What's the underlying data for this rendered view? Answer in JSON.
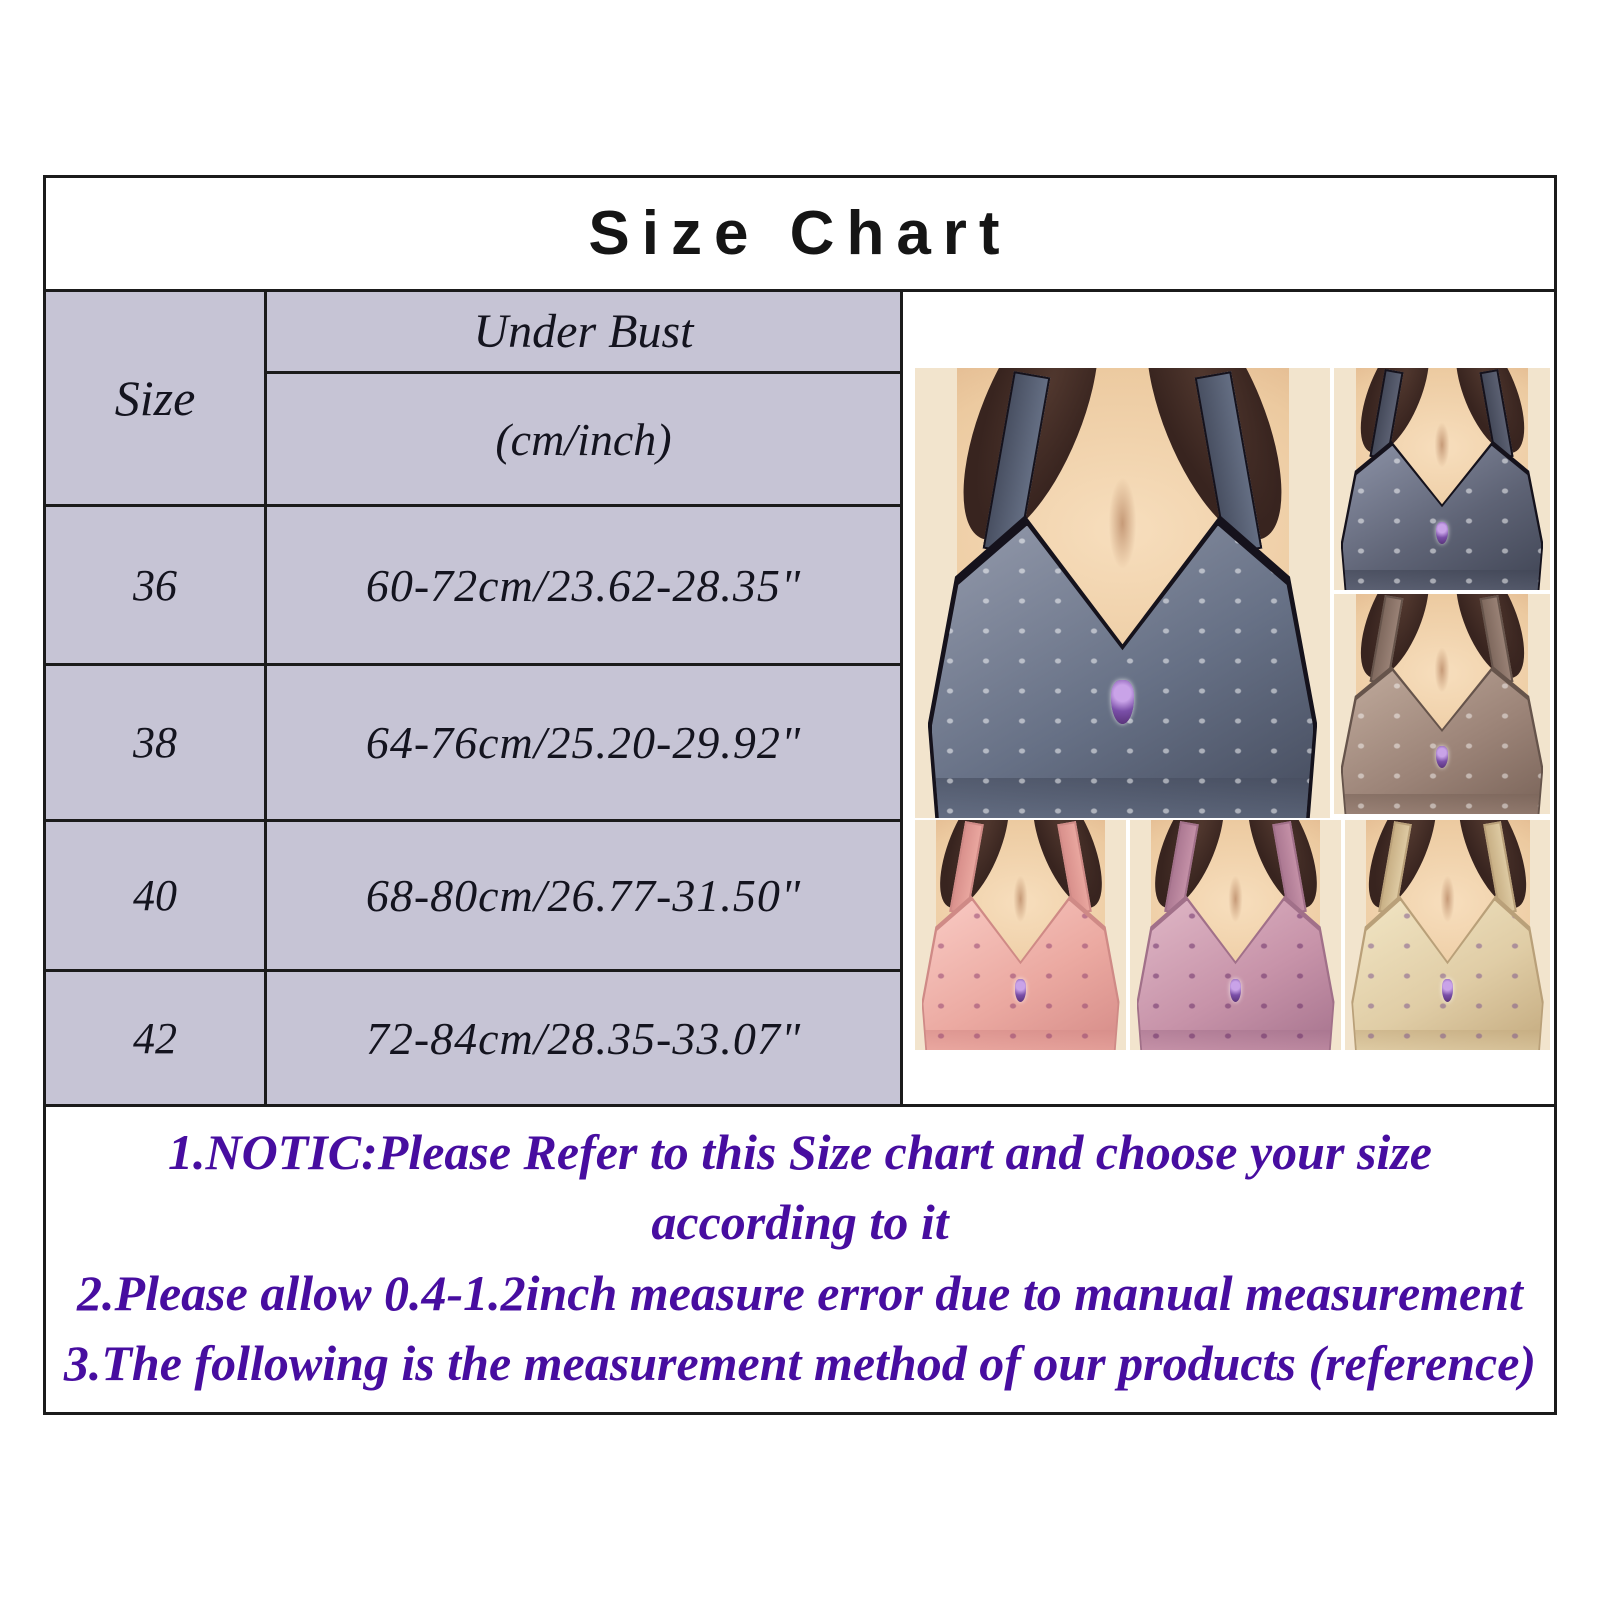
{
  "page": {
    "title": "Size Chart"
  },
  "table": {
    "size_header": "Size",
    "under_bust_header": "Under Bust",
    "unit_header": "(cm/inch)",
    "rows": [
      {
        "size": "36",
        "under_bust": "60-72cm/23.62-28.35\""
      },
      {
        "size": "38",
        "under_bust": "64-76cm/25.20-29.92\""
      },
      {
        "size": "40",
        "under_bust": "68-80cm/26.77-31.50\""
      },
      {
        "size": "42",
        "under_bust": "72-84cm/28.35-33.07\""
      }
    ]
  },
  "notes": {
    "line1": "1.NOTIC:Please Refer to this Size chart and choose your size",
    "line2": "according to it",
    "line3": "2.Please allow 0.4-1.2inch measure error due to manual measurement",
    "line4": "3.The following is the measurement method of our products (reference)"
  },
  "colors": {
    "table_cell": "#c6c4d5",
    "border": "#1b1b1b",
    "title_text": "#151515",
    "note_text": "#470da0",
    "skin": "#eccaa0",
    "skin_highlight": "#f7debd",
    "skin_shadow": "#d9a87e",
    "hair": "#38241f",
    "photo_backdrop": "#f2e4cd"
  },
  "photos": {
    "items": [
      {
        "name": "charcoal gray floral bra, large front view",
        "bra": "#667085",
        "bra_highlight": "#8d94a6",
        "bra_shadow": "#474e60",
        "trim": "#15121c",
        "dot": "rgba(255,255,255,0.5)"
      },
      {
        "name": "charcoal gray floral bra, small view",
        "bra": "#5e6375",
        "bra_highlight": "#868ca0",
        "bra_shadow": "#424757",
        "trim": "#15121c",
        "dot": "rgba(255,255,255,0.5)"
      },
      {
        "name": "taupe brown floral bra",
        "bra": "#9c8478",
        "bra_highlight": "#bba597",
        "bra_shadow": "#7c665b",
        "trim": "#66544b",
        "dot": "rgba(255,255,255,0.45)"
      },
      {
        "name": "pink floral bra",
        "bra": "#eba9a1",
        "bra_highlight": "#f7c6bf",
        "bra_shadow": "#d78e8a",
        "trim": "#cf8a86",
        "dot": "rgba(140,60,110,0.5)"
      },
      {
        "name": "mauve pink floral bra",
        "bra": "#c793a9",
        "bra_highlight": "#dcb2c2",
        "bra_shadow": "#a97690",
        "trim": "#a17089",
        "dot": "rgba(100,40,100,0.5)"
      },
      {
        "name": "beige floral bra",
        "bra": "#e0cda6",
        "bra_highlight": "#efe2c0",
        "bra_shadow": "#c6ad82",
        "trim": "#b9a079",
        "dot": "rgba(120,80,140,0.5)"
      }
    ]
  }
}
